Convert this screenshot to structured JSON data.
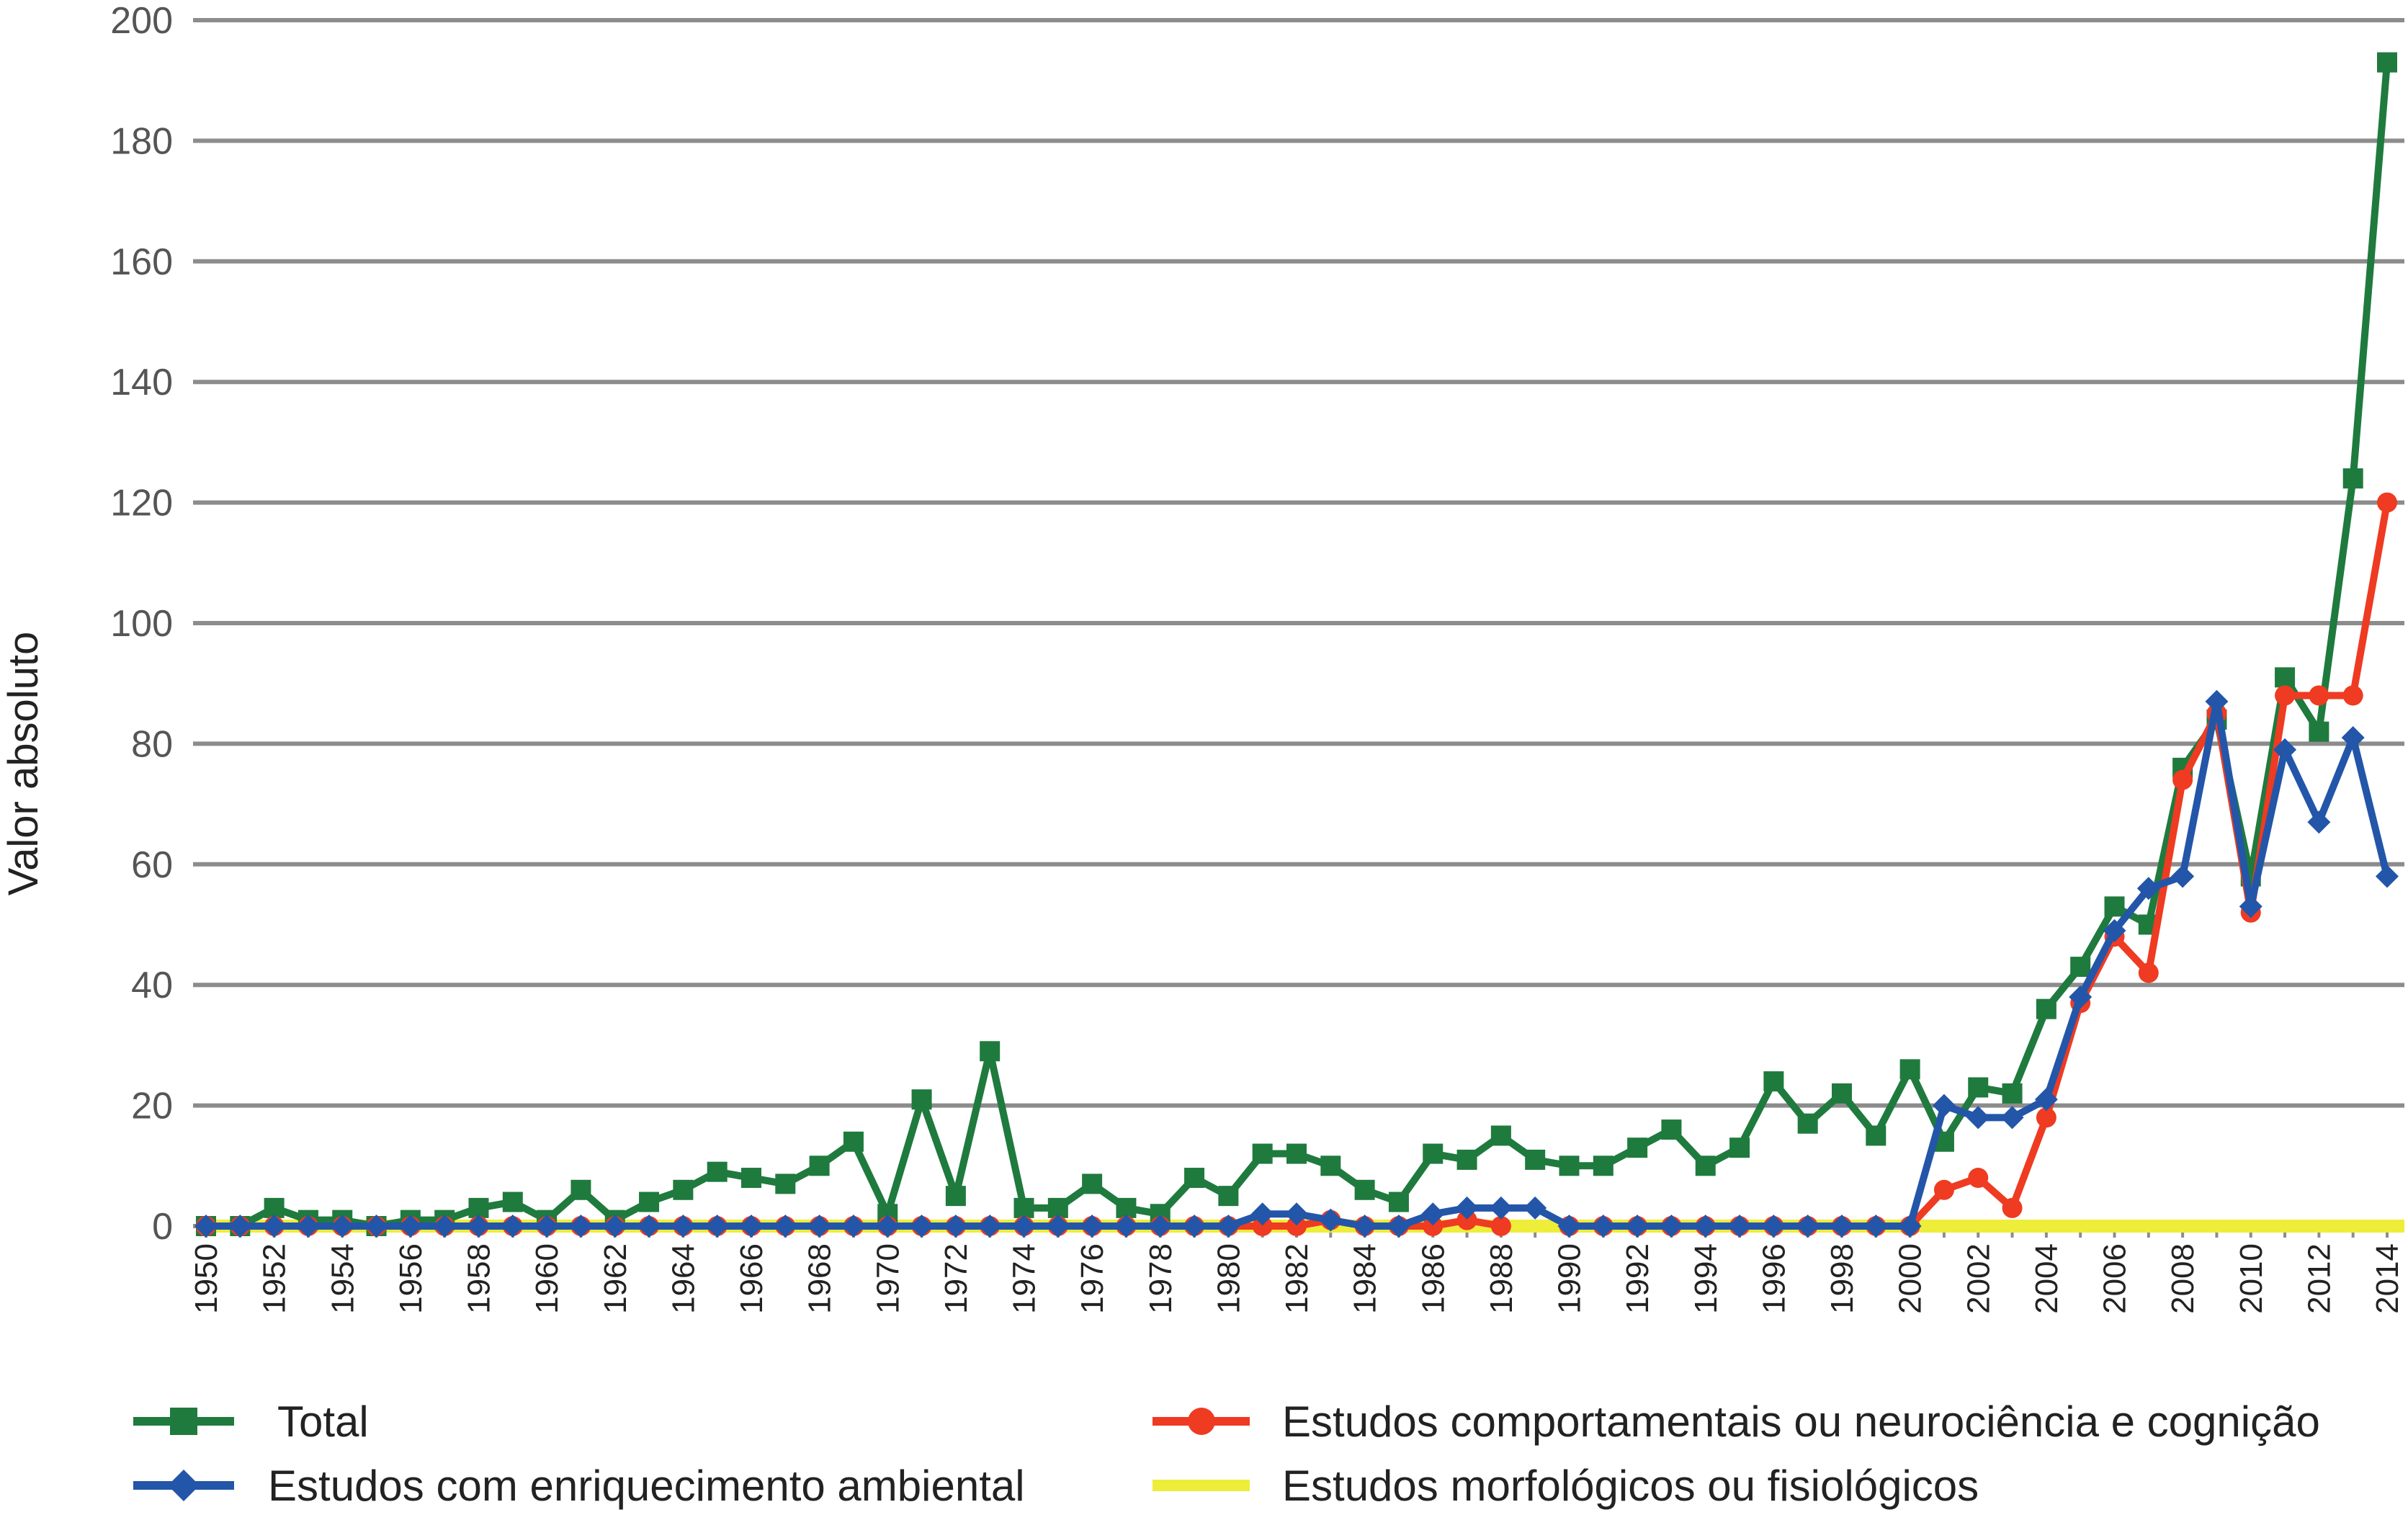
{
  "chart_data": {
    "type": "line",
    "title": "",
    "xlabel": "",
    "ylabel": "Valor absoluto",
    "ylim": [
      0,
      200
    ],
    "yticks": [
      "0",
      "20",
      "40",
      "60",
      "80",
      "100",
      "120",
      "140",
      "160",
      "180",
      "200"
    ],
    "xlim": [
      1950,
      2014
    ],
    "x": [
      1950,
      1951,
      1952,
      1953,
      1954,
      1955,
      1956,
      1957,
      1958,
      1959,
      1960,
      1961,
      1962,
      1963,
      1964,
      1965,
      1966,
      1967,
      1968,
      1969,
      1970,
      1971,
      1972,
      1973,
      1974,
      1975,
      1976,
      1977,
      1978,
      1979,
      1980,
      1981,
      1982,
      1983,
      1984,
      1985,
      1986,
      1987,
      1988,
      1989,
      1990,
      1991,
      1992,
      1993,
      1994,
      1995,
      1996,
      1997,
      1998,
      1999,
      2000,
      2001,
      2002,
      2003,
      2004,
      2005,
      2006,
      2007,
      2008,
      2009,
      2010,
      2011,
      2012,
      2013,
      2014
    ],
    "xtick_labels": [
      "1950",
      "1952",
      "1954",
      "1956",
      "1958",
      "1960",
      "1962",
      "1964",
      "1966",
      "1968",
      "1970",
      "1972",
      "1974",
      "1976",
      "1978",
      "1980",
      "1982",
      "1984",
      "1986",
      "1988",
      "1990",
      "1992",
      "1994",
      "1996",
      "1998",
      "2000",
      "2002",
      "2004",
      "2006",
      "2008",
      "2010",
      "2012",
      "2014"
    ],
    "grid": "horizontal",
    "legend_position": "bottom",
    "series": [
      {
        "name": "Total",
        "color": "#1f7a3e",
        "marker": "square",
        "values": [
          0,
          0,
          3,
          1,
          1,
          0,
          1,
          1,
          3,
          4,
          1,
          6,
          1,
          4,
          6,
          9,
          8,
          7,
          10,
          14,
          2,
          21,
          5,
          29,
          3,
          3,
          7,
          3,
          2,
          8,
          5,
          12,
          12,
          10,
          6,
          4,
          12,
          11,
          15,
          11,
          10,
          10,
          13,
          16,
          10,
          13,
          24,
          17,
          22,
          15,
          26,
          14,
          23,
          22,
          36,
          43,
          53,
          50,
          76,
          84,
          58,
          91,
          82,
          124,
          193
        ]
      },
      {
        "name": "Estudos comportamentais ou neurociência e cognição",
        "color": "#ee3b22",
        "marker": "circle",
        "values": [
          0,
          0,
          0,
          0,
          0,
          0,
          0,
          0,
          0,
          0,
          0,
          0,
          0,
          0,
          0,
          0,
          0,
          0,
          0,
          0,
          0,
          0,
          0,
          0,
          0,
          0,
          0,
          0,
          0,
          0,
          0,
          0,
          0,
          1,
          0,
          0,
          0,
          1,
          0,
          null,
          0,
          0,
          0,
          0,
          0,
          0,
          0,
          0,
          0,
          0,
          0,
          6,
          8,
          3,
          18,
          37,
          48,
          42,
          74,
          85,
          52,
          88,
          88,
          88,
          120
        ]
      },
      {
        "name": "Estudos com enriquecimento ambiental",
        "color": "#2356a8",
        "marker": "diamond",
        "values": [
          0,
          0,
          0,
          0,
          0,
          0,
          0,
          0,
          0,
          0,
          0,
          0,
          0,
          0,
          0,
          0,
          0,
          0,
          0,
          0,
          0,
          0,
          0,
          0,
          0,
          0,
          0,
          0,
          0,
          0,
          0,
          2,
          2,
          1,
          0,
          0,
          2,
          3,
          3,
          3,
          0,
          0,
          0,
          0,
          0,
          0,
          0,
          0,
          0,
          0,
          0,
          20,
          18,
          18,
          21,
          38,
          49,
          56,
          58,
          87,
          53,
          79,
          67,
          81,
          58
        ]
      },
      {
        "name": "Estudos morfológicos ou fisiológicos",
        "color": "#eded3a",
        "marker": "none",
        "values": [
          0,
          0,
          0,
          0,
          0,
          0,
          0,
          0,
          0,
          0,
          0,
          0,
          0,
          0,
          0,
          0,
          0,
          0,
          0,
          0,
          0,
          0,
          0,
          0,
          0,
          0,
          0,
          0,
          0,
          0,
          0,
          0,
          0,
          0,
          0,
          0,
          0,
          0,
          0,
          0,
          0,
          0,
          0,
          0,
          0,
          0,
          0,
          0,
          0,
          0,
          0,
          0,
          0,
          0,
          0,
          0,
          0,
          0,
          0,
          0,
          0,
          0,
          0,
          0,
          0
        ]
      }
    ],
    "legend": {
      "total": "Total",
      "comportamentais": "Estudos comportamentais ou neurociência e cognição",
      "enriquecimento": "Estudos com enriquecimento ambiental",
      "morfologicos": "Estudos morfológicos ou fisiológicos"
    }
  }
}
